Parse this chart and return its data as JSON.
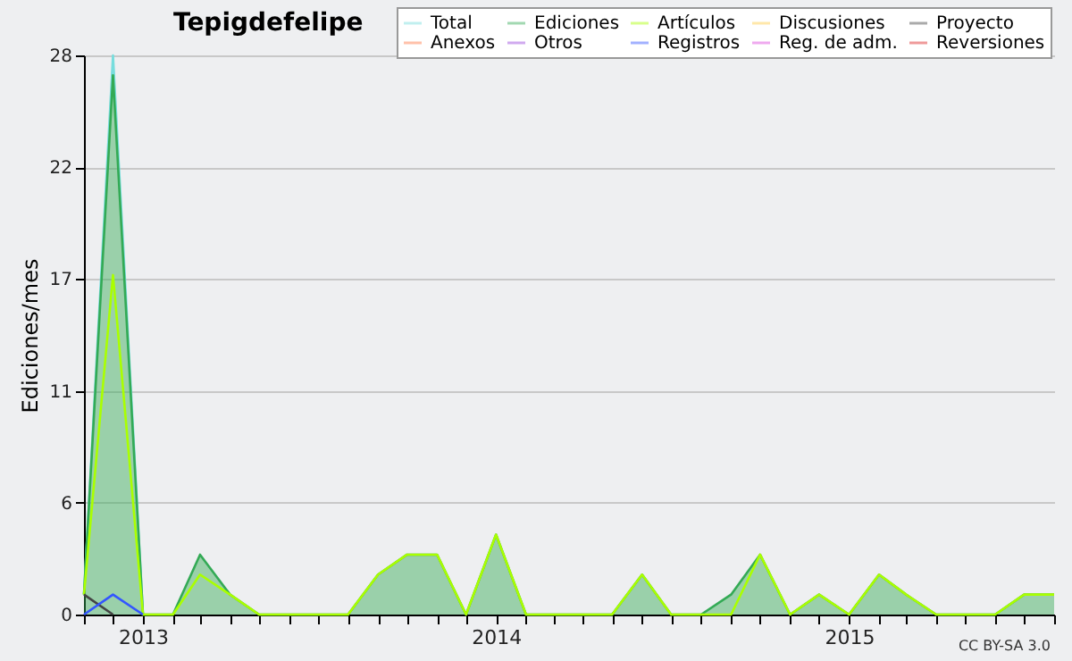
{
  "chart_data": {
    "type": "line",
    "title": "Tepigdefelipe",
    "ylabel": "Ediciones/mes",
    "x": [
      "2012-11",
      "2012-12",
      "2013-01",
      "2013-02",
      "2013-03",
      "2013-04",
      "2013-05",
      "2013-06",
      "2013-07",
      "2013-08",
      "2013-09",
      "2013-10",
      "2013-11",
      "2013-12",
      "2014-01",
      "2014-02",
      "2014-03",
      "2014-04",
      "2014-05",
      "2014-06",
      "2014-07",
      "2014-08",
      "2014-09",
      "2014-10",
      "2014-11",
      "2014-12",
      "2015-01",
      "2015-02",
      "2015-03",
      "2015-04",
      "2015-05",
      "2015-06",
      "2015-07",
      "2015-08"
    ],
    "series": [
      {
        "name": "Total",
        "color": "#77dddd",
        "values": [
          1,
          28,
          0,
          null,
          null,
          null,
          null,
          null,
          null,
          null,
          null,
          null,
          null,
          null,
          null,
          null,
          null,
          null,
          null,
          null,
          null,
          null,
          null,
          null,
          null,
          null,
          null,
          null,
          null,
          null,
          null,
          null,
          null,
          null
        ]
      },
      {
        "name": "Ediciones",
        "type": "area",
        "color": "#33aa55",
        "values": [
          1,
          27,
          0,
          0,
          3,
          1,
          0,
          0,
          0,
          0,
          2,
          3,
          3,
          0,
          4,
          0,
          0,
          0,
          0,
          2,
          0,
          0,
          1,
          3,
          0,
          1,
          0,
          2,
          1,
          0,
          0,
          0,
          1,
          1
        ]
      },
      {
        "name": "Artículos",
        "color": "#aaff00",
        "values": [
          1,
          17,
          0,
          0,
          2,
          1,
          0,
          0,
          0,
          0,
          2,
          3,
          3,
          0,
          4,
          0,
          0,
          0,
          0,
          2,
          0,
          0,
          0,
          3,
          0,
          1,
          0,
          2,
          1,
          0,
          0,
          0,
          1,
          1
        ]
      },
      {
        "name": "Discusiones",
        "color": "#ffcc44",
        "values": [
          null,
          null,
          null,
          null,
          null,
          null,
          null,
          null,
          null,
          null,
          null,
          null,
          null,
          null,
          null,
          null,
          null,
          null,
          null,
          null,
          null,
          null,
          null,
          null,
          null,
          null,
          null,
          null,
          null,
          null,
          null,
          null,
          null,
          null
        ]
      },
      {
        "name": "Proyecto",
        "color": "#444444",
        "values": [
          1,
          0,
          null,
          null,
          null,
          null,
          null,
          null,
          null,
          null,
          null,
          null,
          null,
          null,
          null,
          null,
          null,
          null,
          null,
          null,
          null,
          null,
          null,
          null,
          null,
          null,
          null,
          null,
          null,
          null,
          null,
          null,
          null,
          null
        ]
      },
      {
        "name": "Anexos",
        "color": "#ff7744",
        "values": [
          null,
          null,
          null,
          null,
          null,
          null,
          null,
          null,
          null,
          null,
          null,
          null,
          null,
          null,
          null,
          null,
          null,
          null,
          null,
          null,
          null,
          null,
          null,
          null,
          null,
          null,
          null,
          null,
          null,
          null,
          null,
          null,
          null,
          null
        ]
      },
      {
        "name": "Otros",
        "color": "#9944dd",
        "values": [
          null,
          null,
          null,
          null,
          null,
          null,
          null,
          null,
          null,
          null,
          null,
          null,
          null,
          null,
          null,
          null,
          null,
          null,
          null,
          null,
          null,
          null,
          null,
          null,
          null,
          null,
          null,
          null,
          null,
          null,
          null,
          null,
          null,
          null
        ]
      },
      {
        "name": "Registros",
        "color": "#3355ff",
        "values": [
          0,
          1,
          0,
          null,
          null,
          null,
          null,
          null,
          null,
          null,
          null,
          null,
          null,
          null,
          null,
          null,
          null,
          null,
          null,
          null,
          null,
          null,
          null,
          null,
          null,
          null,
          null,
          null,
          null,
          null,
          null,
          null,
          null,
          null
        ]
      },
      {
        "name": "Reg. de adm.",
        "color": "#dd44dd",
        "values": [
          null,
          null,
          null,
          null,
          null,
          null,
          null,
          null,
          null,
          null,
          null,
          null,
          null,
          null,
          null,
          null,
          null,
          null,
          null,
          null,
          null,
          null,
          null,
          null,
          null,
          null,
          null,
          null,
          null,
          null,
          null,
          null,
          null,
          null
        ]
      },
      {
        "name": "Reversiones",
        "color": "#dd2222",
        "values": [
          null,
          null,
          null,
          null,
          null,
          null,
          null,
          null,
          null,
          null,
          null,
          null,
          null,
          null,
          null,
          null,
          null,
          null,
          null,
          null,
          null,
          null,
          null,
          null,
          null,
          null,
          null,
          null,
          null,
          null,
          null,
          null,
          null,
          null
        ]
      }
    ],
    "xlim": [
      "2012-11",
      "2015-08"
    ],
    "xticks": [
      {
        "value": "2012-11",
        "label": null
      },
      {
        "value": "2012-12",
        "label": null
      },
      {
        "value": "2013-01",
        "label": "2013"
      },
      {
        "value": "2013-02",
        "label": null
      },
      {
        "value": "2013-03",
        "label": null
      },
      {
        "value": "2013-04",
        "label": null
      },
      {
        "value": "2013-05",
        "label": null
      },
      {
        "value": "2013-06",
        "label": null
      },
      {
        "value": "2013-07",
        "label": null
      },
      {
        "value": "2013-08",
        "label": null
      },
      {
        "value": "2013-09",
        "label": null
      },
      {
        "value": "2013-10",
        "label": null
      },
      {
        "value": "2013-11",
        "label": null
      },
      {
        "value": "2013-12",
        "label": null
      },
      {
        "value": "2014-01",
        "label": "2014"
      },
      {
        "value": "2014-02",
        "label": null
      },
      {
        "value": "2014-03",
        "label": null
      },
      {
        "value": "2014-04",
        "label": null
      },
      {
        "value": "2014-05",
        "label": null
      },
      {
        "value": "2014-06",
        "label": null
      },
      {
        "value": "2014-07",
        "label": null
      },
      {
        "value": "2014-08",
        "label": null
      },
      {
        "value": "2014-09",
        "label": null
      },
      {
        "value": "2014-10",
        "label": null
      },
      {
        "value": "2014-11",
        "label": null
      },
      {
        "value": "2014-12",
        "label": null
      },
      {
        "value": "2015-01",
        "label": "2015"
      },
      {
        "value": "2015-02",
        "label": null
      },
      {
        "value": "2015-03",
        "label": null
      },
      {
        "value": "2015-04",
        "label": null
      },
      {
        "value": "2015-05",
        "label": null
      },
      {
        "value": "2015-06",
        "label": null
      },
      {
        "value": "2015-07",
        "label": null
      },
      {
        "value": "2015-08",
        "label": null
      }
    ],
    "ylim": [
      0,
      28
    ],
    "yticks": [
      {
        "value": 0,
        "label": "0"
      },
      {
        "value": 5.6,
        "label": "6"
      },
      {
        "value": 11.2,
        "label": "11"
      },
      {
        "value": 16.8,
        "label": "17"
      },
      {
        "value": 22.4,
        "label": "22"
      },
      {
        "value": 28,
        "label": "28"
      }
    ],
    "grid": "y",
    "legend": "top right",
    "marker": "none",
    "line_style": "solid",
    "annotations": [
      "CC BY-SA 3.0"
    ]
  }
}
